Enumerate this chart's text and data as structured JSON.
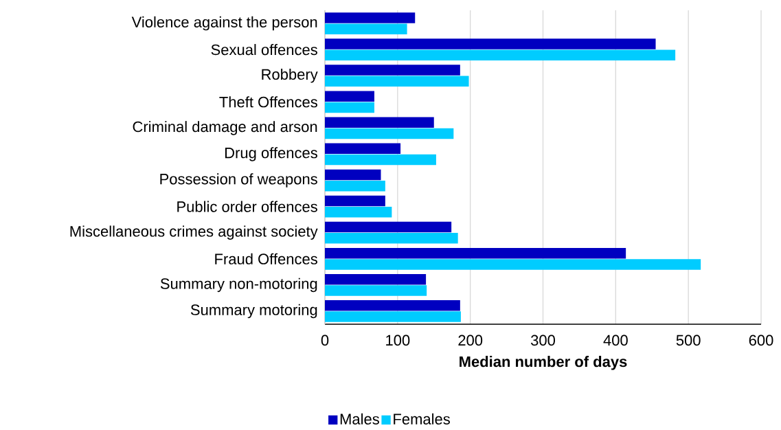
{
  "chart_data": {
    "type": "bar",
    "orientation": "horizontal",
    "xlabel": "Median number of days",
    "categories": [
      "Violence against the person",
      "Sexual offences",
      "Robbery",
      "Theft Offences",
      "Criminal damage and arson",
      "Drug offences",
      "Possession of weapons",
      "Public order offences",
      "Miscellaneous crimes against society",
      "Fraud Offences",
      "Summary non-motoring",
      "Summary motoring"
    ],
    "series": [
      {
        "name": "Males",
        "color": "#0000c0",
        "values": [
          124,
          455,
          186,
          68,
          150,
          104,
          77,
          83,
          174,
          414,
          139,
          186
        ]
      },
      {
        "name": "Females",
        "color": "#00ccff",
        "values": [
          113,
          482,
          198,
          68,
          177,
          153,
          83,
          92,
          183,
          517,
          140,
          187
        ]
      }
    ],
    "xlim": [
      0,
      600
    ],
    "xticks": [
      0,
      100,
      200,
      300,
      400,
      500,
      600
    ],
    "grid": "x",
    "legend": "bottom"
  }
}
